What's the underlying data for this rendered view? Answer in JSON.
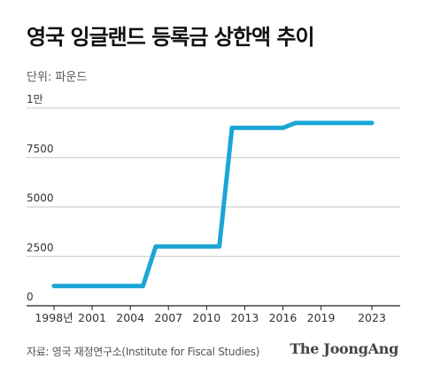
{
  "title": "영국 잉글랜드 등록금 상한액 추이",
  "unit_label": "단위: 파운드",
  "source": "자료: 영국 재정연구소(Institute for Fiscal Studies)",
  "brand": "The JoongAng",
  "colors": {
    "line": "#1aa6d6",
    "grid": "#c8c8c8",
    "axis": "#222222",
    "text": "#333333"
  },
  "chart_data": {
    "type": "line",
    "title": "영국 잉글랜드 등록금 상한액 추이",
    "ylabel": "단위: 파운드",
    "xlim": [
      1998,
      2023
    ],
    "ylim": [
      0,
      10000
    ],
    "yticks": [
      {
        "value": 0,
        "label": "0"
      },
      {
        "value": 2500,
        "label": "2500"
      },
      {
        "value": 5000,
        "label": "5000"
      },
      {
        "value": 7500,
        "label": "7500"
      },
      {
        "value": 10000,
        "label": "1만"
      }
    ],
    "xticks": [
      {
        "value": 1998,
        "label": "1998년"
      },
      {
        "value": 2001,
        "label": "2001"
      },
      {
        "value": 2004,
        "label": "2004"
      },
      {
        "value": 2007,
        "label": "2007"
      },
      {
        "value": 2010,
        "label": "2010"
      },
      {
        "value": 2013,
        "label": "2013"
      },
      {
        "value": 2016,
        "label": "2016"
      },
      {
        "value": 2019,
        "label": "2019"
      },
      {
        "value": 2023,
        "label": "2023"
      }
    ],
    "grid": true,
    "series": [
      {
        "x": [
          1998,
          1999,
          2000,
          2001,
          2002,
          2003,
          2004,
          2005,
          2006,
          2007,
          2008,
          2009,
          2010,
          2011,
          2012,
          2013,
          2014,
          2015,
          2016,
          2017,
          2018,
          2019,
          2020,
          2021,
          2022,
          2023
        ],
        "values": [
          1000,
          1000,
          1000,
          1000,
          1000,
          1000,
          1000,
          1000,
          3000,
          3000,
          3000,
          3000,
          3000,
          3000,
          9000,
          9000,
          9000,
          9000,
          9000,
          9250,
          9250,
          9250,
          9250,
          9250,
          9250,
          9250
        ]
      }
    ]
  }
}
